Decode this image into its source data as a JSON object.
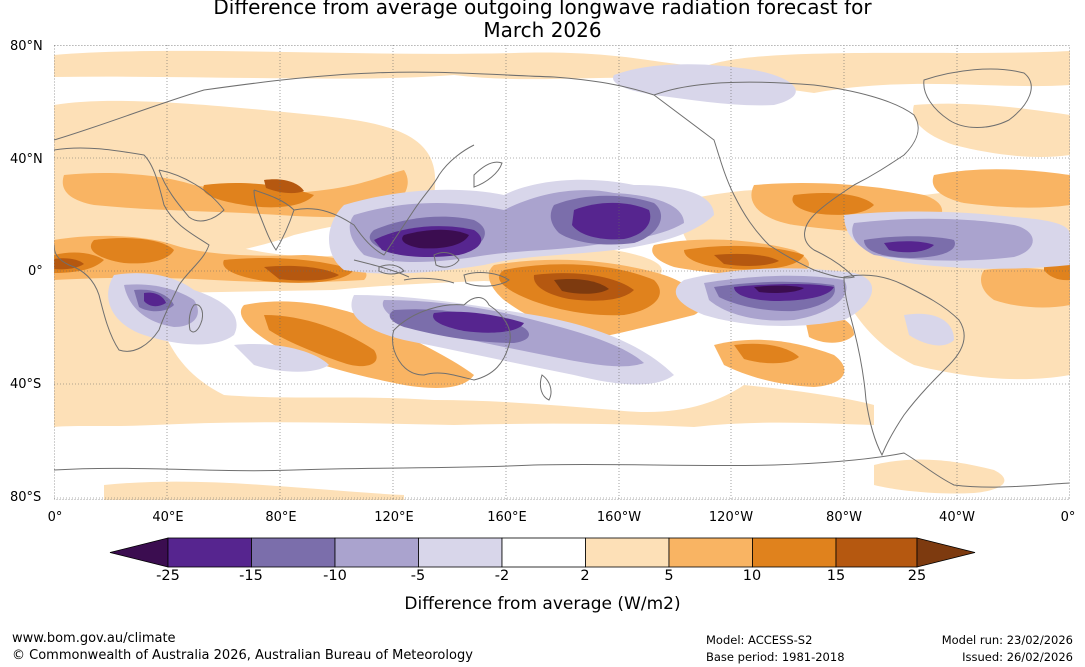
{
  "title": {
    "line1": "Difference from average outgoing longwave radiation forecast for",
    "line2": "March 2026"
  },
  "map": {
    "lat_labels": [
      "80°N",
      "40°N",
      "0°",
      "40°S",
      "80°S"
    ],
    "lon_labels": [
      "0°",
      "40°E",
      "80°E",
      "120°E",
      "160°E",
      "160°W",
      "120°W",
      "80°W",
      "40°W",
      "0°"
    ]
  },
  "colorbar": {
    "ticks": [
      "-25",
      "-15",
      "-10",
      "-5",
      "-2",
      "2",
      "5",
      "10",
      "15",
      "25"
    ],
    "colors": [
      "#3b0d50",
      "#56258f",
      "#7b6eab",
      "#aaa3ce",
      "#d8d6ea",
      "#ffffff",
      "#fde0b7",
      "#f9b463",
      "#e0821d",
      "#b55810",
      "#7d3a0f"
    ],
    "label": "Difference from average (W/m2)"
  },
  "footer": {
    "url": "www.bom.gov.au/climate",
    "copyright": "© Commonwealth of Australia 2026, Australian Bureau of Meteorology",
    "model": "Model: ACCESS-S2",
    "base_period": "Base period: 1981-2018",
    "model_run": "Model run: 23/02/2026",
    "issued": "Issued: 26/02/2026"
  }
}
